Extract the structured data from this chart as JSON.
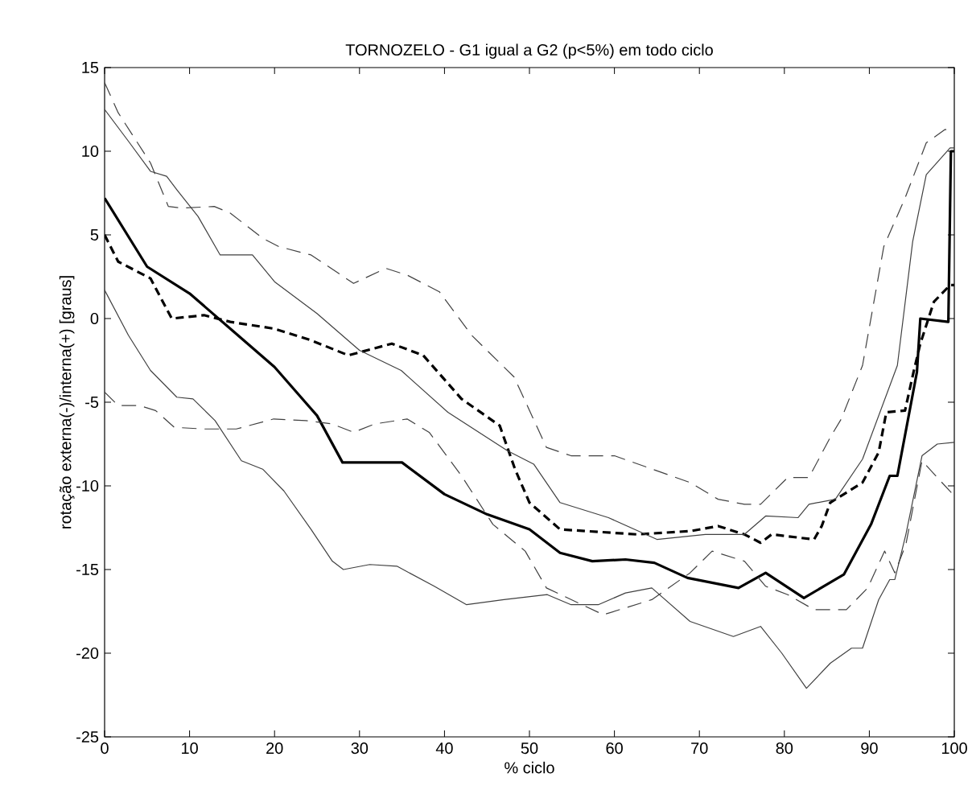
{
  "chart_data": {
    "type": "line",
    "title": "TORNOZELO - G1 igual a G2 (p<5%) em todo ciclo",
    "xlabel": "% ciclo",
    "ylabel": "rotação externa(-)/interna(+) [graus]",
    "xlim": [
      0,
      100
    ],
    "ylim": [
      -25,
      15
    ],
    "xticks": [
      0,
      10,
      20,
      30,
      40,
      50,
      60,
      70,
      80,
      90,
      100
    ],
    "yticks": [
      -25,
      -20,
      -15,
      -10,
      -5,
      0,
      5,
      10,
      15
    ],
    "marker": "none",
    "series": [
      {
        "color": "#000000",
        "line_style": "solid",
        "x": [
          0,
          5,
          10,
          15,
          20,
          25,
          28,
          35,
          40,
          45,
          50,
          53.6,
          57.4,
          61.3,
          64.7,
          68.6,
          74.6,
          77.8,
          82.3,
          87,
          90.2,
          92.4,
          93.3,
          95.6,
          96,
          99.3,
          99.6,
          100
        ],
        "values": [
          7.2,
          3.1,
          1.5,
          -0.7,
          -2.9,
          -5.8,
          -8.6,
          -8.6,
          -10.5,
          -11.7,
          -12.6,
          -14,
          -14.5,
          -14.4,
          -14.6,
          -15.5,
          -16.1,
          -15.2,
          -16.7,
          -15.3,
          -12.3,
          -9.4,
          -9.4,
          -3.2,
          0,
          -0.2,
          10,
          10
        ]
      },
      {
        "color": "#000000",
        "line_style": "dashed",
        "x": [
          0,
          1.6,
          5.4,
          7.9,
          11.7,
          14.8,
          19.9,
          24.3,
          28.7,
          33.8,
          37.5,
          42,
          46.5,
          48.3,
          50,
          53.6,
          62.7,
          69,
          72.2,
          75.3,
          77.2,
          78.5,
          83.5,
          84.4,
          85.4,
          89.2,
          91.1,
          92,
          94.2,
          95.2,
          96,
          97.6,
          99.5,
          100
        ],
        "values": [
          5,
          3.4,
          2.4,
          0,
          0.2,
          -0.2,
          -0.6,
          -1.3,
          -2.2,
          -1.5,
          -2.2,
          -4.8,
          -6.4,
          -9,
          -11,
          -12.6,
          -12.9,
          -12.7,
          -12.4,
          -12.9,
          -13.4,
          -12.9,
          -13.2,
          -12.4,
          -11,
          -9.8,
          -8,
          -5.6,
          -5.5,
          -3.2,
          -1.5,
          1,
          2,
          2
        ]
      },
      {
        "color": "#404040",
        "line_style": "solid",
        "x": [
          0,
          2.8,
          5.4,
          7.3,
          8.5,
          11,
          13.6,
          17.4,
          20,
          25,
          30,
          34.9,
          40.4,
          47.4,
          50.5,
          53.6,
          59.3,
          65,
          70.7,
          75.3,
          77.8,
          81.6,
          82.9,
          86,
          89.2,
          93.3,
          95.1,
          96.7,
          99.5,
          100
        ],
        "values": [
          12.5,
          10.6,
          8.8,
          8.5,
          7.7,
          6.1,
          3.8,
          3.8,
          2.2,
          0.3,
          -1.9,
          -3.1,
          -5.6,
          -7.9,
          -8.7,
          -11,
          -11.9,
          -13.2,
          -12.9,
          -12.9,
          -11.8,
          -11.9,
          -11.1,
          -10.8,
          -8.4,
          -2.8,
          4.6,
          8.6,
          10.2,
          10.2
        ]
      },
      {
        "color": "#404040",
        "line_style": "solid",
        "x": [
          0,
          2.8,
          5.4,
          8.5,
          10.4,
          13,
          16.1,
          18.6,
          21.1,
          24.3,
          26.8,
          28.1,
          31.2,
          34.4,
          38.8,
          42.6,
          47,
          52.1,
          54.9,
          58.1,
          61.3,
          64.4,
          68.9,
          74,
          77.2,
          79.7,
          82.6,
          85.4,
          87.9,
          89.2,
          91.1,
          92.4,
          93,
          94.3,
          96.2,
          98,
          100
        ],
        "values": [
          1.7,
          -1,
          -3.1,
          -4.7,
          -4.8,
          -6.1,
          -8.5,
          -9,
          -10.3,
          -12.6,
          -14.5,
          -15,
          -14.7,
          -14.8,
          -16,
          -17.1,
          -16.8,
          -16.5,
          -17.1,
          -17.1,
          -16.4,
          -16.1,
          -18.1,
          -19,
          -18.4,
          -20,
          -22.1,
          -20.6,
          -19.7,
          -19.7,
          -16.8,
          -15.6,
          -15.6,
          -12.9,
          -8.2,
          -7.5,
          -7.4
        ]
      },
      {
        "color": "#404040",
        "line_style": "dashed",
        "x": [
          0,
          1.6,
          5.4,
          7.5,
          9.1,
          12.9,
          14.8,
          18.6,
          20.5,
          24.3,
          29.3,
          33.1,
          35.6,
          39.4,
          43.2,
          48.2,
          52,
          54.9,
          60,
          63.9,
          68.9,
          72.2,
          75.3,
          77.2,
          80.4,
          82.9,
          85.4,
          86.7,
          89.2,
          91.7,
          94.2,
          96.7,
          98.9,
          100
        ],
        "values": [
          14.1,
          12.3,
          9.3,
          6.7,
          6.6,
          6.7,
          6.3,
          4.8,
          4.3,
          3.8,
          2.1,
          3,
          2.6,
          1.6,
          -1,
          -3.5,
          -7.7,
          -8.2,
          -8.2,
          -8.9,
          -9.8,
          -10.8,
          -11.1,
          -11.1,
          -9.5,
          -9.5,
          -7.1,
          -6,
          -2.8,
          4.3,
          7.2,
          10.5,
          11.3,
          11.2
        ]
      },
      {
        "color": "#404040",
        "line_style": "dashed",
        "x": [
          0,
          1.6,
          4.1,
          6,
          8.2,
          11.7,
          15.5,
          19.9,
          23.7,
          26.8,
          29.3,
          31.8,
          35.6,
          38.2,
          42,
          45.7,
          49.5,
          52,
          58.7,
          64.4,
          68.9,
          71.5,
          75.3,
          77.8,
          80.4,
          83.5,
          87.3,
          89.8,
          91.8,
          93,
          94.3,
          96.2,
          98,
          100
        ],
        "values": [
          -4.4,
          -5.2,
          -5.2,
          -5.5,
          -6.5,
          -6.6,
          -6.6,
          -6,
          -6.1,
          -6.3,
          -6.8,
          -6.3,
          -6,
          -6.8,
          -9.4,
          -12.3,
          -13.9,
          -16.1,
          -17.7,
          -16.8,
          -15.2,
          -13.9,
          -14.5,
          -16,
          -16.5,
          -17.4,
          -17.4,
          -16.1,
          -13.9,
          -15.2,
          -13.5,
          -8.5,
          -9.5,
          -10.6
        ]
      }
    ]
  }
}
